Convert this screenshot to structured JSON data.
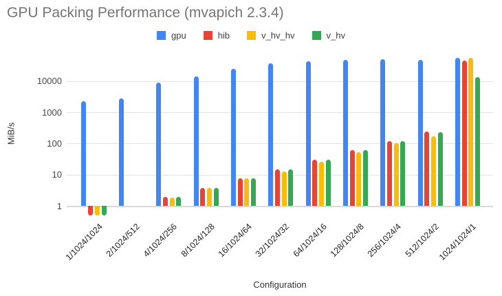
{
  "title": "GPU Packing Performance (mvapich 2.3.4)",
  "axis": {
    "x_title": "Configuration",
    "y_title": "MiB/s"
  },
  "colors": {
    "gpu": "#4285F4",
    "hib": "#EA4335",
    "v_hv_hv": "#FBBC04",
    "v_hv": "#34A853",
    "title_text": "#757575",
    "gridline": "#e3e3e3"
  },
  "chart_data": {
    "type": "bar",
    "title": "GPU Packing Performance (mvapich 2.3.4)",
    "xlabel": "Configuration",
    "ylabel": "MiB/s",
    "y_scale": "log",
    "y_ticks": [
      1,
      10,
      100,
      1000,
      10000
    ],
    "ylim": [
      0.49,
      88000
    ],
    "grid": true,
    "legend_position": "top",
    "categories": [
      "1/1024/1024",
      "2/1024/512",
      "4/1024/256",
      "8/1024/128",
      "16/1024/64",
      "32/1024/32",
      "64/1024/16",
      "128/1024/8",
      "256/1024/4",
      "512/1024/2",
      "1024/1024/1"
    ],
    "series": [
      {
        "name": "gpu",
        "color": "#4285F4",
        "values": [
          2300,
          2800,
          8900,
          14000,
          25000,
          37000,
          44000,
          48000,
          50000,
          47000,
          55000
        ]
      },
      {
        "name": "hib",
        "color": "#EA4335",
        "values": [
          0.5,
          null,
          1.9,
          3.7,
          7.5,
          15,
          30,
          61,
          120,
          245,
          45000
        ]
      },
      {
        "name": "v_hv_hv",
        "color": "#FBBC04",
        "values": [
          0.5,
          null,
          1.85,
          3.7,
          7.5,
          12.5,
          26,
          52,
          100,
          170,
          57000
        ]
      },
      {
        "name": "v_hv",
        "color": "#34A853",
        "values": [
          0.5,
          null,
          1.9,
          3.8,
          7.7,
          15,
          30,
          61,
          121,
          230,
          13200
        ]
      }
    ]
  }
}
